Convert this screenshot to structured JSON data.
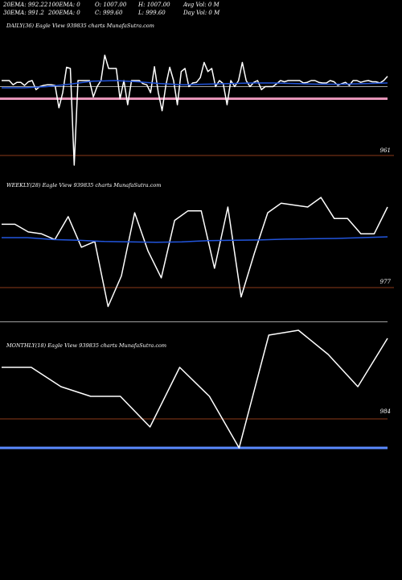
{
  "header": {
    "ema20": "20EMA: 992.22",
    "ema100": "100EMA: 0",
    "open": "O: 1007.00",
    "high": "H: 1007.00",
    "avgvol": "Avg Vol: 0  M",
    "ema30": "30EMA: 991.2",
    "ema200": "200EMA: 0",
    "close": "C: 999.60",
    "low": "L: 999.60",
    "dayvol": "Day Vol: 0  M"
  },
  "colors": {
    "price": "#ffffff",
    "ema": "#2255dd",
    "guide": "#8b3a1a",
    "pink": "#e695b8",
    "grey": "#a0a0a0",
    "blue": "#5a8aff"
  },
  "chart_data": [
    {
      "type": "line",
      "title": "DAILY(36) Eagle  View  939835 charts MunafaSutra.com",
      "level_label": "961",
      "series": [
        {
          "values": [
            1004,
            1004,
            1004,
            1003.3,
            1003.7,
            1003.7,
            1003.2,
            1003.8,
            1004,
            1002.5,
            1003,
            1003.2,
            1003.3,
            1003.3,
            1003.2,
            999.5,
            1002,
            1006.2,
            1006,
            990,
            1004,
            1004,
            1004,
            1004,
            1001.3,
            1003,
            1004,
            1008.2,
            1006,
            1006,
            1006,
            1001,
            1004,
            1000,
            1004,
            1004,
            1004,
            1003.5,
            1003.3,
            1002,
            1006.3,
            1002,
            999,
            1003.3,
            1006.2,
            1004,
            1000,
            1005.5,
            1006,
            1003,
            1003.6,
            1003.7,
            1004.5,
            1007,
            1005.5,
            1006,
            1003,
            1004,
            1003.5,
            1000,
            1004,
            1003,
            1004,
            1007,
            1004,
            1003,
            1003.7,
            1004,
            1002.5,
            1003,
            1003,
            1003,
            1003.5,
            1004,
            1003.8,
            1004,
            1004,
            1004,
            1004,
            1003.6,
            1003.7,
            1004,
            1004,
            1003.7,
            1003.6,
            1003.6,
            1004,
            1003.8,
            1003.2,
            1003.5,
            1003.7,
            1003.2,
            1004,
            1004,
            1003.7,
            1003.9,
            1004,
            1003.8,
            1003.8,
            1003.6,
            1004,
            1004.7
          ]
        },
        {
          "values": [
            1002.8,
            1002.8,
            1003,
            1003.4,
            1003.9,
            1004,
            1003.8,
            1003.5,
            1003.3,
            1003.4,
            1003.5,
            1003.6,
            1003.6,
            1003.5,
            1003.4,
            1003.4,
            1003.5,
            1003.6
          ]
        }
      ],
      "reference_levels": [
        1003,
        1001
      ]
    },
    {
      "type": "line",
      "title": "WEEKLY(28) Eagle  View  939835 charts MunafaSutra.com",
      "level_label": "977",
      "series": [
        {
          "values": [
            1003.5,
            1003.5,
            1001.5,
            1001,
            999.5,
            1005.5,
            997.5,
            999,
            982,
            990,
            1006.5,
            996.5,
            989.5,
            1004.5,
            1007,
            1007,
            992,
            1008,
            984.5,
            996,
            1006.5,
            1009,
            1008.5,
            1008,
            1010.5,
            1005,
            1005,
            1001,
            1001,
            1008
          ]
        },
        {
          "values": [
            1000,
            1000,
            999.5,
            999.3,
            999,
            998.9,
            998.8,
            998.9,
            999.2,
            999.3,
            999.4,
            999.6,
            999.7,
            999.8,
            1000,
            1000.2
          ]
        }
      ],
      "reference_levels": [
        978
      ]
    },
    {
      "type": "line",
      "title": "MONTHLY(18) Eagle  View  939835 charts MunafaSutra.com",
      "level_label": "984",
      "series": [
        {
          "values": [
            1010,
            1010,
            1004,
            1001,
            1001,
            991.5,
            1010,
            1001,
            985,
            1020,
            1021.5,
            1014,
            1004,
            1019
          ]
        }
      ],
      "reference_levels": [
        994,
        985
      ]
    }
  ]
}
